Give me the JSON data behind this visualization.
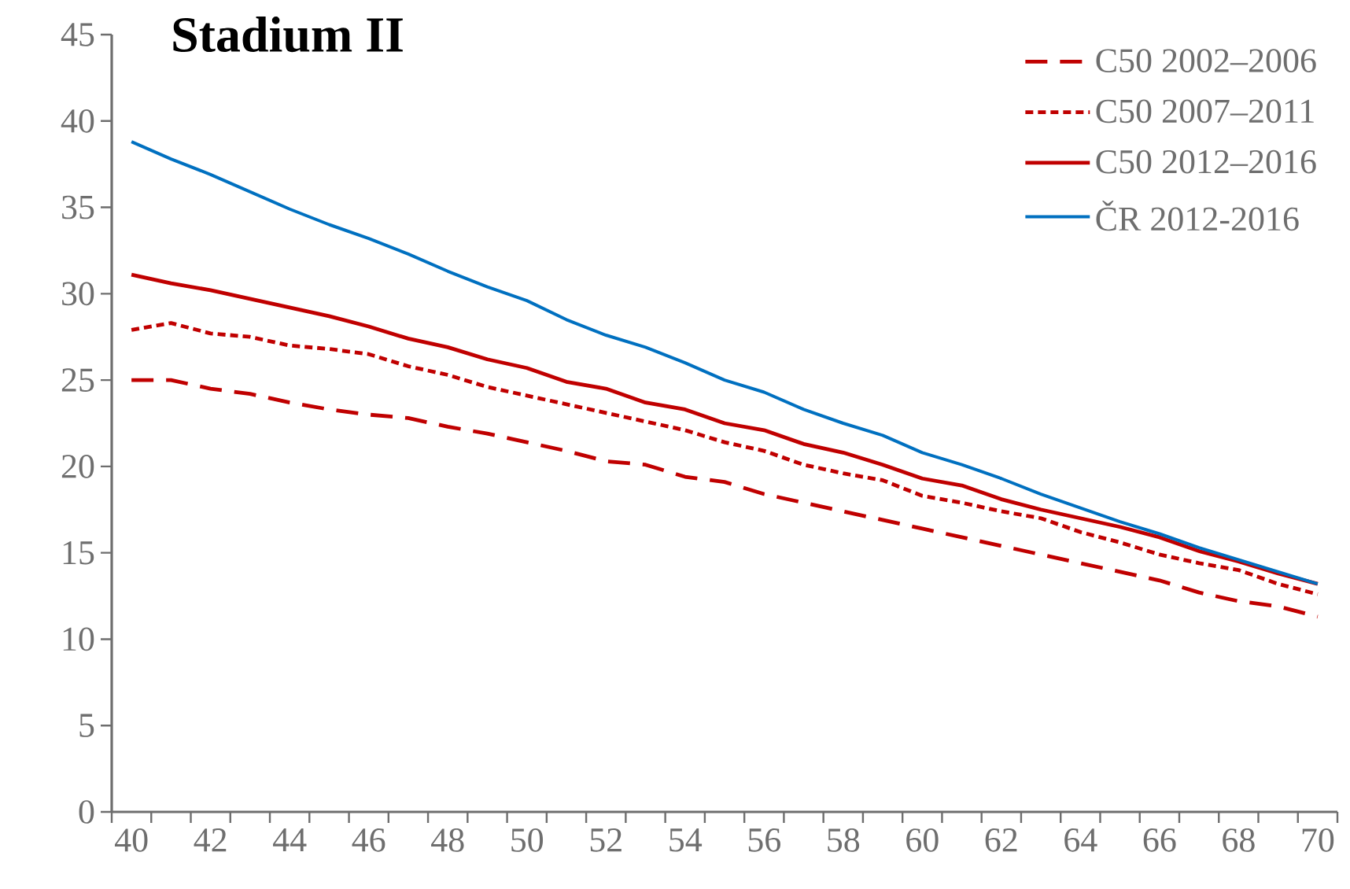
{
  "chart_data": {
    "type": "line",
    "title": "Stadium II",
    "categories": [
      "40",
      null,
      "42",
      null,
      "44",
      null,
      "46",
      null,
      "48",
      null,
      "50",
      null,
      "52",
      null,
      "54",
      null,
      "56",
      null,
      "58",
      null,
      "60",
      null,
      "62",
      null,
      "64",
      null,
      "66",
      null,
      "68",
      null,
      "70"
    ],
    "ylim": [
      0,
      45
    ],
    "yticks": [
      0,
      5,
      10,
      15,
      20,
      25,
      30,
      35,
      40,
      45
    ],
    "legend": "top right",
    "series": [
      {
        "name": "C50 2002–2006",
        "color": "#c00000",
        "line_style": "dashed",
        "values": [
          25.0,
          25.0,
          24.5,
          24.2,
          23.7,
          23.3,
          23.0,
          22.8,
          22.3,
          21.9,
          21.4,
          20.9,
          20.3,
          20.1,
          19.4,
          19.1,
          18.4,
          17.9,
          17.4,
          16.9,
          16.4,
          15.9,
          15.4,
          14.9,
          14.4,
          13.9,
          13.4,
          12.7,
          12.2,
          11.9,
          11.3
        ]
      },
      {
        "name": "C50 2007–2011",
        "color": "#c00000",
        "line_style": "dotted",
        "values": [
          27.9,
          28.3,
          27.7,
          27.5,
          27.0,
          26.8,
          26.5,
          25.8,
          25.3,
          24.6,
          24.1,
          23.6,
          23.1,
          22.6,
          22.1,
          21.4,
          20.9,
          20.1,
          19.6,
          19.2,
          18.3,
          17.9,
          17.4,
          17.0,
          16.2,
          15.6,
          14.9,
          14.4,
          14.0,
          13.2,
          12.6
        ]
      },
      {
        "name": "C50 2012–2016",
        "color": "#c00000",
        "line_style": "solid",
        "values": [
          31.1,
          30.6,
          30.2,
          29.7,
          29.2,
          28.7,
          28.1,
          27.4,
          26.9,
          26.2,
          25.7,
          24.9,
          24.5,
          23.7,
          23.3,
          22.5,
          22.1,
          21.3,
          20.8,
          20.1,
          19.3,
          18.9,
          18.1,
          17.5,
          17.0,
          16.5,
          15.9,
          15.1,
          14.5,
          13.8,
          13.2
        ]
      },
      {
        "name": "ČR 2012-2016",
        "color": "#0070c0",
        "line_style": "solid",
        "values": [
          38.8,
          37.8,
          36.9,
          35.9,
          34.9,
          34.0,
          33.2,
          32.3,
          31.3,
          30.4,
          29.6,
          28.5,
          27.6,
          26.9,
          26.0,
          25.0,
          24.3,
          23.3,
          22.5,
          21.8,
          20.8,
          20.1,
          19.3,
          18.4,
          17.6,
          16.8,
          16.1,
          15.3,
          14.6,
          13.9,
          13.2
        ]
      }
    ]
  }
}
